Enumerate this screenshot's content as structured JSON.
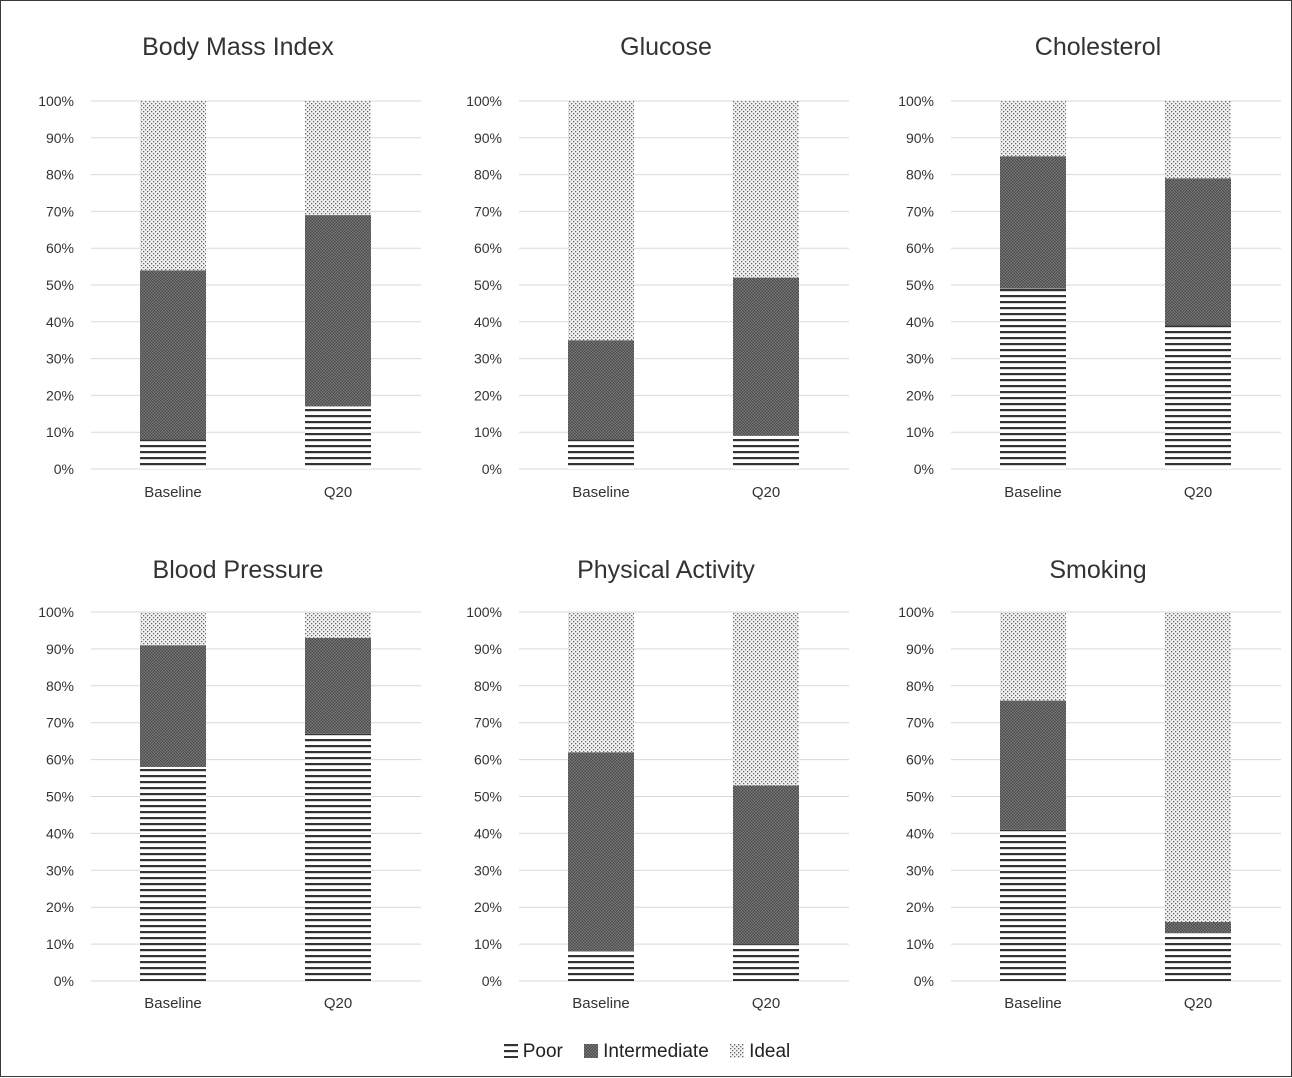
{
  "legend": {
    "poor": "Poor",
    "intermediate": "Intermediate",
    "ideal": "Ideal"
  },
  "colors": {
    "poor_stripe": "#333333",
    "intermediate_fill": "#666666",
    "ideal_dots": "#555555",
    "gridline": "#d9d9d9",
    "text": "#333333"
  },
  "chart_data": [
    {
      "type": "bar",
      "stacked": true,
      "title": "Body Mass Index",
      "categories": [
        "Baseline",
        "Q20"
      ],
      "series": [
        {
          "name": "Poor",
          "values": [
            8,
            17
          ]
        },
        {
          "name": "Intermediate",
          "values": [
            46,
            52
          ]
        },
        {
          "name": "Ideal",
          "values": [
            46,
            31
          ]
        }
      ],
      "ylim": [
        0,
        100
      ],
      "yticks": [
        "0%",
        "10%",
        "20%",
        "30%",
        "40%",
        "50%",
        "60%",
        "70%",
        "80%",
        "90%",
        "100%"
      ],
      "grid": true
    },
    {
      "type": "bar",
      "stacked": true,
      "title": "Glucose",
      "categories": [
        "Baseline",
        "Q20"
      ],
      "series": [
        {
          "name": "Poor",
          "values": [
            8,
            9
          ]
        },
        {
          "name": "Intermediate",
          "values": [
            27,
            43
          ]
        },
        {
          "name": "Ideal",
          "values": [
            65,
            48
          ]
        }
      ],
      "ylim": [
        0,
        100
      ],
      "yticks": [
        "0%",
        "10%",
        "20%",
        "30%",
        "40%",
        "50%",
        "60%",
        "70%",
        "80%",
        "90%",
        "100%"
      ],
      "grid": true
    },
    {
      "type": "bar",
      "stacked": true,
      "title": "Cholesterol",
      "categories": [
        "Baseline",
        "Q20"
      ],
      "series": [
        {
          "name": "Poor",
          "values": [
            49,
            39
          ]
        },
        {
          "name": "Intermediate",
          "values": [
            36,
            40
          ]
        },
        {
          "name": "Ideal",
          "values": [
            15,
            21
          ]
        }
      ],
      "ylim": [
        0,
        100
      ],
      "yticks": [
        "0%",
        "10%",
        "20%",
        "30%",
        "40%",
        "50%",
        "60%",
        "70%",
        "80%",
        "90%",
        "100%"
      ],
      "grid": true
    },
    {
      "type": "bar",
      "stacked": true,
      "title": "Blood Pressure",
      "categories": [
        "Baseline",
        "Q20"
      ],
      "series": [
        {
          "name": "Poor",
          "values": [
            58,
            67
          ]
        },
        {
          "name": "Intermediate",
          "values": [
            33,
            26
          ]
        },
        {
          "name": "Ideal",
          "values": [
            9,
            7
          ]
        }
      ],
      "ylim": [
        0,
        100
      ],
      "yticks": [
        "0%",
        "10%",
        "20%",
        "30%",
        "40%",
        "50%",
        "60%",
        "70%",
        "80%",
        "90%",
        "100%"
      ],
      "grid": true
    },
    {
      "type": "bar",
      "stacked": true,
      "title": "Physical Activity",
      "categories": [
        "Baseline",
        "Q20"
      ],
      "series": [
        {
          "name": "Poor",
          "values": [
            8,
            10
          ]
        },
        {
          "name": "Intermediate",
          "values": [
            54,
            43
          ]
        },
        {
          "name": "Ideal",
          "values": [
            38,
            47
          ]
        }
      ],
      "ylim": [
        0,
        100
      ],
      "yticks": [
        "0%",
        "10%",
        "20%",
        "30%",
        "40%",
        "50%",
        "60%",
        "70%",
        "80%",
        "90%",
        "100%"
      ],
      "grid": true
    },
    {
      "type": "bar",
      "stacked": true,
      "title": "Smoking",
      "categories": [
        "Baseline",
        "Q20"
      ],
      "series": [
        {
          "name": "Poor",
          "values": [
            41,
            13
          ]
        },
        {
          "name": "Intermediate",
          "values": [
            35,
            3
          ]
        },
        {
          "name": "Ideal",
          "values": [
            24,
            84
          ]
        }
      ],
      "ylim": [
        0,
        100
      ],
      "yticks": [
        "0%",
        "10%",
        "20%",
        "30%",
        "40%",
        "50%",
        "60%",
        "70%",
        "80%",
        "90%",
        "100%"
      ],
      "grid": true
    }
  ]
}
